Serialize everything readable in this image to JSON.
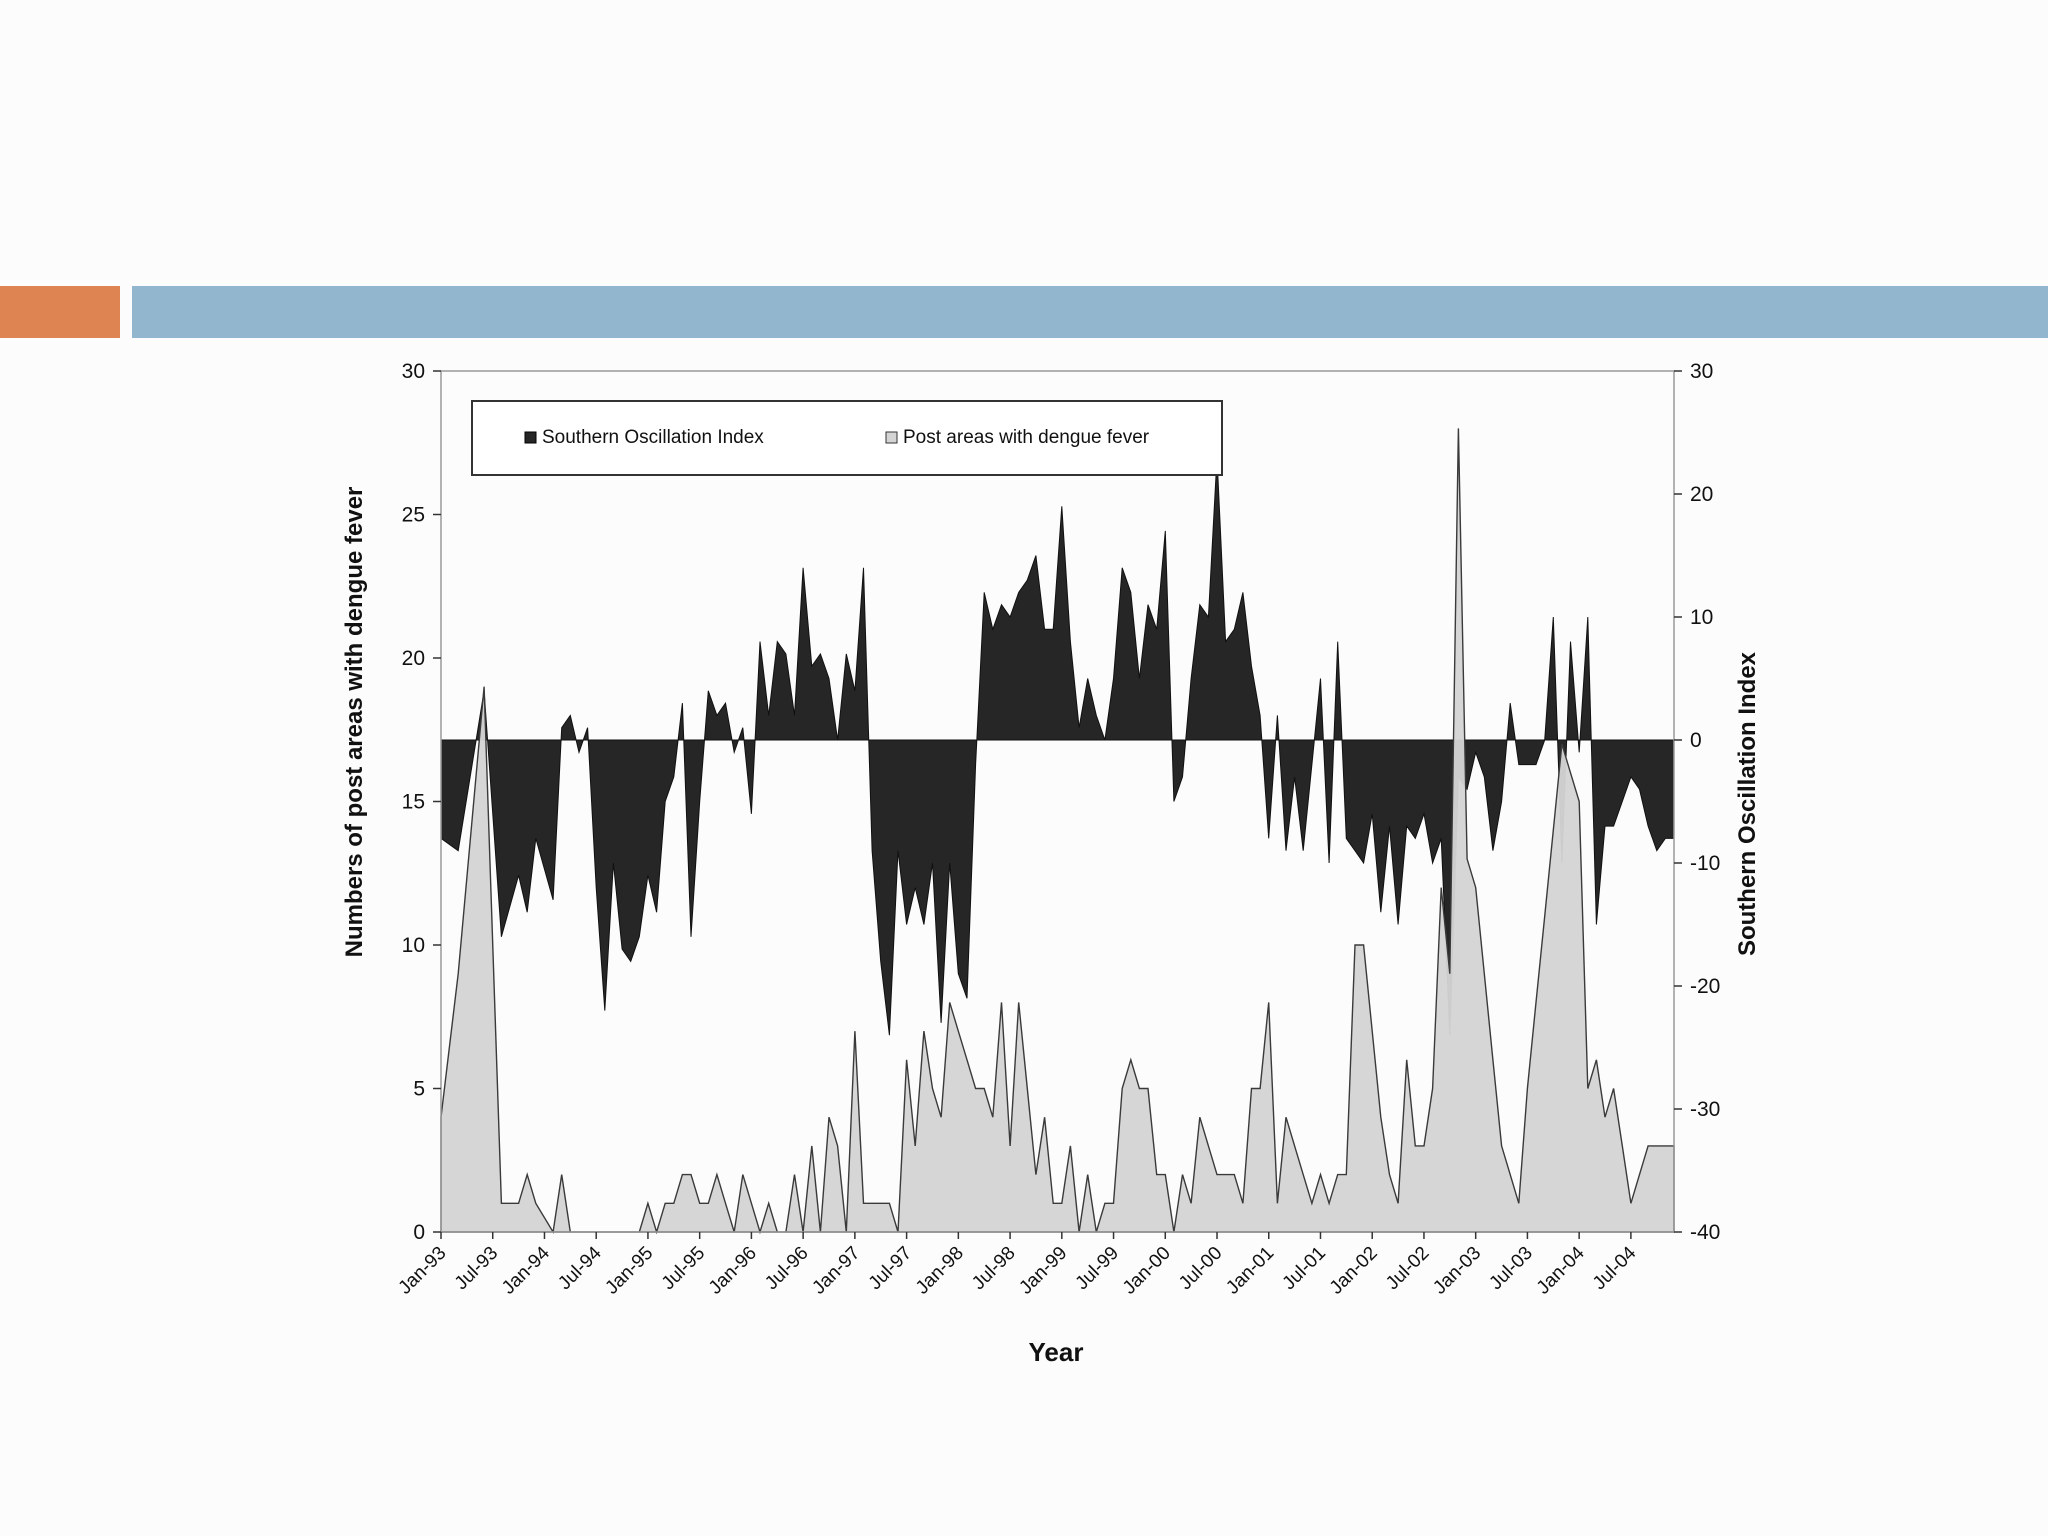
{
  "slide": {
    "accent_color": "#dd8452",
    "bar_color": "#92b6cd"
  },
  "chart_data": {
    "type": "area",
    "title": "",
    "xlabel": "Year",
    "ylabel_left": "Numbers of post areas with dengue fever",
    "ylabel_right": "Southern Oscillation Index",
    "ylim_left": [
      0,
      30
    ],
    "ylim_right": [
      -40,
      30
    ],
    "yticks_left": [
      0,
      5,
      10,
      15,
      20,
      25,
      30
    ],
    "yticks_right": [
      -40,
      -30,
      -20,
      -10,
      0,
      10,
      20,
      30
    ],
    "xticks": [
      "Jan-93",
      "Jul-93",
      "Jan-94",
      "Jul-94",
      "Jan-95",
      "Jul-95",
      "Jan-96",
      "Jul-96",
      "Jan-97",
      "Jul-97",
      "Jan-98",
      "Jul-98",
      "Jan-99",
      "Jul-99",
      "Jan-00",
      "Jul-00",
      "Jan-01",
      "Jul-01",
      "Jan-02",
      "Jul-02",
      "Jan-03",
      "Jul-03",
      "Jan-04",
      "Jul-04"
    ],
    "x_range": [
      "Jan-93",
      "Dec-04"
    ],
    "grid": false,
    "legend_position": "top-left",
    "series": [
      {
        "name": "Southern Oscillation Index",
        "axis": "right",
        "color": "#262626",
        "points": [
          [
            "Jan-93",
            -8
          ],
          [
            "Mar-93",
            -9
          ],
          [
            "Jun-93",
            4
          ],
          [
            "Aug-93",
            -16
          ],
          [
            "Oct-93",
            -11
          ],
          [
            "Nov-93",
            -14
          ],
          [
            "Dec-93",
            -8
          ],
          [
            "Feb-94",
            -13
          ],
          [
            "Mar-94",
            1
          ],
          [
            "Apr-94",
            2
          ],
          [
            "May-94",
            -1
          ],
          [
            "Jun-94",
            1
          ],
          [
            "Jul-94",
            -12
          ],
          [
            "Aug-94",
            -22
          ],
          [
            "Sep-94",
            -10
          ],
          [
            "Oct-94",
            -17
          ],
          [
            "Nov-94",
            -18
          ],
          [
            "Dec-94",
            -16
          ],
          [
            "Jan-95",
            -11
          ],
          [
            "Feb-95",
            -14
          ],
          [
            "Mar-95",
            -5
          ],
          [
            "Apr-95",
            -3
          ],
          [
            "May-95",
            3
          ],
          [
            "Jun-95",
            -16
          ],
          [
            "Jul-95",
            -5
          ],
          [
            "Aug-95",
            4
          ],
          [
            "Sep-95",
            2
          ],
          [
            "Oct-95",
            3
          ],
          [
            "Nov-95",
            -1
          ],
          [
            "Dec-95",
            1
          ],
          [
            "Jan-96",
            -6
          ],
          [
            "Feb-96",
            8
          ],
          [
            "Mar-96",
            2
          ],
          [
            "Apr-96",
            8
          ],
          [
            "May-96",
            7
          ],
          [
            "Jun-96",
            2
          ],
          [
            "Jul-96",
            14
          ],
          [
            "Aug-96",
            6
          ],
          [
            "Sep-96",
            7
          ],
          [
            "Oct-96",
            5
          ],
          [
            "Nov-96",
            0
          ],
          [
            "Dec-96",
            7
          ],
          [
            "Jan-97",
            4
          ],
          [
            "Feb-97",
            14
          ],
          [
            "Mar-97",
            -9
          ],
          [
            "Apr-97",
            -18
          ],
          [
            "May-97",
            -24
          ],
          [
            "Jun-97",
            -9
          ],
          [
            "Jul-97",
            -15
          ],
          [
            "Aug-97",
            -12
          ],
          [
            "Sep-97",
            -15
          ],
          [
            "Oct-97",
            -10
          ],
          [
            "Nov-97",
            -23
          ],
          [
            "Dec-97",
            -10
          ],
          [
            "Jan-98",
            -19
          ],
          [
            "Feb-98",
            -21
          ],
          [
            "Mar-98",
            -2
          ],
          [
            "Apr-98",
            12
          ],
          [
            "May-98",
            9
          ],
          [
            "Jun-98",
            11
          ],
          [
            "Jul-98",
            10
          ],
          [
            "Aug-98",
            12
          ],
          [
            "Sep-98",
            13
          ],
          [
            "Oct-98",
            15
          ],
          [
            "Nov-98",
            9
          ],
          [
            "Dec-98",
            9
          ],
          [
            "Jan-99",
            19
          ],
          [
            "Feb-99",
            8
          ],
          [
            "Mar-99",
            1
          ],
          [
            "Apr-99",
            5
          ],
          [
            "May-99",
            2
          ],
          [
            "Jun-99",
            0
          ],
          [
            "Jul-99",
            5
          ],
          [
            "Aug-99",
            14
          ],
          [
            "Sep-99",
            12
          ],
          [
            "Oct-99",
            5
          ],
          [
            "Nov-99",
            11
          ],
          [
            "Dec-99",
            9
          ],
          [
            "Jan-00",
            17
          ],
          [
            "Feb-00",
            -5
          ],
          [
            "Mar-00",
            -3
          ],
          [
            "Apr-00",
            5
          ],
          [
            "May-00",
            11
          ],
          [
            "Jun-00",
            10
          ],
          [
            "Jul-00",
            23
          ],
          [
            "Aug-00",
            8
          ],
          [
            "Sep-00",
            9
          ],
          [
            "Oct-00",
            12
          ],
          [
            "Nov-00",
            6
          ],
          [
            "Dec-00",
            2
          ],
          [
            "Jan-01",
            -8
          ],
          [
            "Feb-01",
            2
          ],
          [
            "Mar-01",
            -9
          ],
          [
            "Apr-01",
            -3
          ],
          [
            "May-01",
            -9
          ],
          [
            "Jun-01",
            -2
          ],
          [
            "Jul-01",
            5
          ],
          [
            "Aug-01",
            -10
          ],
          [
            "Sep-01",
            8
          ],
          [
            "Oct-01",
            -8
          ],
          [
            "Nov-01",
            -9
          ],
          [
            "Dec-01",
            -10
          ],
          [
            "Jan-02",
            -6
          ],
          [
            "Feb-02",
            -14
          ],
          [
            "Mar-02",
            -7
          ],
          [
            "Apr-02",
            -15
          ],
          [
            "May-02",
            -7
          ],
          [
            "Jun-02",
            -8
          ],
          [
            "Jul-02",
            -6
          ],
          [
            "Aug-02",
            -10
          ],
          [
            "Sep-02",
            -8
          ],
          [
            "Oct-02",
            -24
          ],
          [
            "Nov-02",
            -3
          ],
          [
            "Dec-02",
            -4
          ],
          [
            "Jan-03",
            -1
          ],
          [
            "Feb-03",
            -3
          ],
          [
            "Mar-03",
            -9
          ],
          [
            "Apr-03",
            -5
          ],
          [
            "May-03",
            3
          ],
          [
            "Jun-03",
            -2
          ],
          [
            "Jul-03",
            -2
          ],
          [
            "Aug-03",
            -2
          ],
          [
            "Sep-03",
            0
          ],
          [
            "Oct-03",
            10
          ],
          [
            "Nov-03",
            -10
          ],
          [
            "Dec-03",
            8
          ],
          [
            "Jan-04",
            -1
          ],
          [
            "Feb-04",
            10
          ],
          [
            "Mar-04",
            -15
          ],
          [
            "Apr-04",
            -7
          ],
          [
            "May-04",
            -7
          ],
          [
            "Jun-04",
            -5
          ],
          [
            "Jul-04",
            -3
          ],
          [
            "Aug-04",
            -4
          ],
          [
            "Sep-04",
            -7
          ],
          [
            "Oct-04",
            -9
          ],
          [
            "Nov-04",
            -8
          ],
          [
            "Dec-04",
            -8
          ]
        ]
      },
      {
        "name": "Post areas with dengue fever",
        "axis": "left",
        "color": "#d4d4d4",
        "points": [
          [
            "Jan-93",
            4
          ],
          [
            "Mar-93",
            9
          ],
          [
            "Jun-93",
            19
          ],
          [
            "Aug-93",
            1
          ],
          [
            "Oct-93",
            1
          ],
          [
            "Nov-93",
            2
          ],
          [
            "Dec-93",
            1
          ],
          [
            "Feb-94",
            0
          ],
          [
            "Mar-94",
            2
          ],
          [
            "Apr-94",
            0
          ],
          [
            "May-94",
            0
          ],
          [
            "Jun-94",
            0
          ],
          [
            "Jul-94",
            0
          ],
          [
            "Aug-94",
            0
          ],
          [
            "Sep-94",
            0
          ],
          [
            "Oct-94",
            0
          ],
          [
            "Nov-94",
            0
          ],
          [
            "Dec-94",
            0
          ],
          [
            "Jan-95",
            1
          ],
          [
            "Feb-95",
            0
          ],
          [
            "Mar-95",
            1
          ],
          [
            "Apr-95",
            1
          ],
          [
            "May-95",
            2
          ],
          [
            "Jun-95",
            2
          ],
          [
            "Jul-95",
            1
          ],
          [
            "Aug-95",
            1
          ],
          [
            "Sep-95",
            2
          ],
          [
            "Oct-95",
            1
          ],
          [
            "Nov-95",
            0
          ],
          [
            "Dec-95",
            2
          ],
          [
            "Jan-96",
            1
          ],
          [
            "Feb-96",
            0
          ],
          [
            "Mar-96",
            1
          ],
          [
            "Apr-96",
            0
          ],
          [
            "May-96",
            0
          ],
          [
            "Jun-96",
            2
          ],
          [
            "Jul-96",
            0
          ],
          [
            "Aug-96",
            3
          ],
          [
            "Sep-96",
            0
          ],
          [
            "Oct-96",
            4
          ],
          [
            "Nov-96",
            3
          ],
          [
            "Dec-96",
            0
          ],
          [
            "Jan-97",
            7
          ],
          [
            "Feb-97",
            1
          ],
          [
            "Mar-97",
            1
          ],
          [
            "Apr-97",
            1
          ],
          [
            "May-97",
            1
          ],
          [
            "Jun-97",
            0
          ],
          [
            "Jul-97",
            6
          ],
          [
            "Aug-97",
            3
          ],
          [
            "Sep-97",
            7
          ],
          [
            "Oct-97",
            5
          ],
          [
            "Nov-97",
            4
          ],
          [
            "Dec-97",
            8
          ],
          [
            "Jan-98",
            7
          ],
          [
            "Feb-98",
            6
          ],
          [
            "Mar-98",
            5
          ],
          [
            "Apr-98",
            5
          ],
          [
            "May-98",
            4
          ],
          [
            "Jun-98",
            8
          ],
          [
            "Jul-98",
            3
          ],
          [
            "Aug-98",
            8
          ],
          [
            "Sep-98",
            5
          ],
          [
            "Oct-98",
            2
          ],
          [
            "Nov-98",
            4
          ],
          [
            "Dec-98",
            1
          ],
          [
            "Jan-99",
            1
          ],
          [
            "Feb-99",
            3
          ],
          [
            "Mar-99",
            0
          ],
          [
            "Apr-99",
            2
          ],
          [
            "May-99",
            0
          ],
          [
            "Jun-99",
            1
          ],
          [
            "Jul-99",
            1
          ],
          [
            "Aug-99",
            5
          ],
          [
            "Sep-99",
            6
          ],
          [
            "Oct-99",
            5
          ],
          [
            "Nov-99",
            5
          ],
          [
            "Dec-99",
            2
          ],
          [
            "Jan-00",
            2
          ],
          [
            "Feb-00",
            0
          ],
          [
            "Mar-00",
            2
          ],
          [
            "Apr-00",
            1
          ],
          [
            "May-00",
            4
          ],
          [
            "Jun-00",
            3
          ],
          [
            "Jul-00",
            2
          ],
          [
            "Aug-00",
            2
          ],
          [
            "Sep-00",
            2
          ],
          [
            "Oct-00",
            1
          ],
          [
            "Nov-00",
            5
          ],
          [
            "Dec-00",
            5
          ],
          [
            "Jan-01",
            8
          ],
          [
            "Feb-01",
            1
          ],
          [
            "Mar-01",
            4
          ],
          [
            "Apr-01",
            3
          ],
          [
            "May-01",
            2
          ],
          [
            "Jun-01",
            1
          ],
          [
            "Jul-01",
            2
          ],
          [
            "Aug-01",
            1
          ],
          [
            "Sep-01",
            2
          ],
          [
            "Oct-01",
            2
          ],
          [
            "Nov-01",
            10
          ],
          [
            "Dec-01",
            10
          ],
          [
            "Jan-02",
            7
          ],
          [
            "Feb-02",
            4
          ],
          [
            "Mar-02",
            2
          ],
          [
            "Apr-02",
            1
          ],
          [
            "May-02",
            6
          ],
          [
            "Jun-02",
            3
          ],
          [
            "Jul-02",
            3
          ],
          [
            "Aug-02",
            5
          ],
          [
            "Sep-02",
            12
          ],
          [
            "Oct-02",
            9
          ],
          [
            "Nov-02",
            28
          ],
          [
            "Dec-02",
            13
          ],
          [
            "Jan-03",
            12
          ],
          [
            "Feb-03",
            9
          ],
          [
            "Mar-03",
            6
          ],
          [
            "Apr-03",
            3
          ],
          [
            "May-03",
            2
          ],
          [
            "Jun-03",
            1
          ],
          [
            "Jul-03",
            5
          ],
          [
            "Aug-03",
            8
          ],
          [
            "Sep-03",
            11
          ],
          [
            "Oct-03",
            14
          ],
          [
            "Nov-03",
            17
          ],
          [
            "Dec-03",
            16
          ],
          [
            "Jan-04",
            15
          ],
          [
            "Feb-04",
            5
          ],
          [
            "Mar-04",
            6
          ],
          [
            "Apr-04",
            4
          ],
          [
            "May-04",
            5
          ],
          [
            "Jun-04",
            3
          ],
          [
            "Jul-04",
            1
          ],
          [
            "Aug-04",
            2
          ],
          [
            "Sep-04",
            3
          ],
          [
            "Oct-04",
            3
          ],
          [
            "Nov-04",
            3
          ],
          [
            "Dec-04",
            3
          ]
        ]
      }
    ]
  }
}
